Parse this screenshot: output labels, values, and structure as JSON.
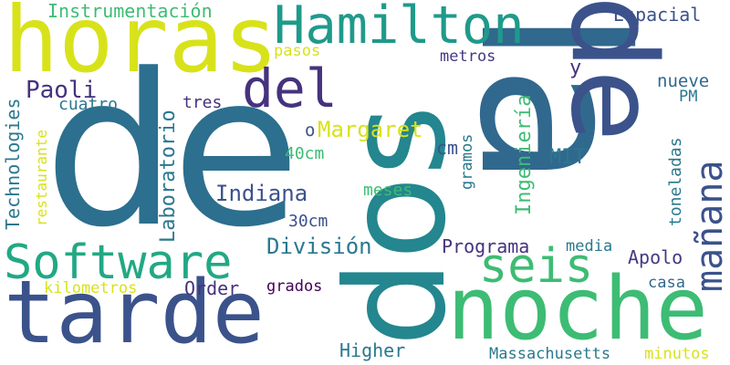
{
  "palette": {
    "background": "#ffffff",
    "yellow": "#d8e21a",
    "light_green": "#6ccd5a",
    "green": "#3dbc74",
    "teal": "#22a884",
    "teal_blue": "#1f9a8a",
    "blue_teal": "#2a788e",
    "blue": "#31688e",
    "dark_blue": "#3b528b",
    "indigo": "#443a83",
    "purple": "#46327e",
    "dark_purple": "#440154"
  },
  "words": {
    "de": "de",
    "la": "la",
    "dos": "dos",
    "tarde": "tarde",
    "noche": "noche",
    "horas": "horas",
    "hamilton": "Hamilton",
    "software": "Software",
    "del": "del",
    "seis": "seis",
    "manana": "mañana",
    "instrumentacion": "Instrumentación",
    "espacial": "Espacial",
    "paoli": "Paoli",
    "pasos": "pasos",
    "metros": "metros",
    "y": "y",
    "nueve": "nueve",
    "pm": "PM",
    "technologies": "Technologies",
    "restaurante": "restaurante",
    "laboratorio": "Laboratorio",
    "cuatro": "cuatro",
    "tres": "tres",
    "margaret": "Margaret",
    "o": "o",
    "cm": "cm",
    "mit": "MIT",
    "forty_cm": "40cm",
    "gramos": "gramos",
    "ingenieria": "Ingeniería",
    "toneladas": "toneladas",
    "indiana": "Indiana",
    "meses": "meses",
    "thirty_cm": "30cm",
    "division": "División",
    "programa": "Programa",
    "media": "media",
    "apolo": "Apolo",
    "kilometros": "kilometros",
    "order": "Order",
    "grados": "grados",
    "casa": "casa",
    "higher": "Higher",
    "massachusetts": "Massachusetts",
    "minutos": "minutos"
  }
}
